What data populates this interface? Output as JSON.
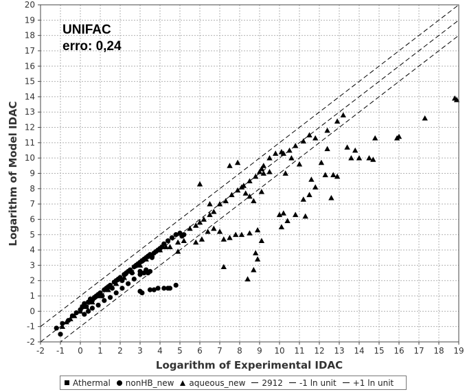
{
  "chart_data": {
    "type": "scatter",
    "title": "",
    "annotation": [
      "UNIFAC",
      "erro: 0,24"
    ],
    "xlabel": "Logarithm of Experimental IDAC",
    "ylabel": "Logarithm of Model IDAC",
    "xlim": [
      -2,
      19
    ],
    "ylim": [
      -2,
      20
    ],
    "xticks": [
      -2,
      -1,
      0,
      1,
      2,
      3,
      4,
      5,
      6,
      7,
      8,
      9,
      10,
      11,
      12,
      13,
      14,
      15,
      16,
      17,
      18,
      19
    ],
    "yticks": [
      -2,
      -1,
      0,
      1,
      2,
      3,
      4,
      5,
      6,
      7,
      8,
      9,
      10,
      11,
      12,
      13,
      14,
      15,
      16,
      17,
      18,
      19,
      20
    ],
    "grid": true,
    "legend_position": "bottom",
    "legend": [
      "Athermal",
      "nonHB_new",
      "aqueous_new",
      "2912",
      "-1 ln unit",
      "+1 ln unit"
    ],
    "series": [
      {
        "name": "nonHB_new",
        "marker": "circle",
        "points": [
          [
            -1.0,
            -1.5
          ],
          [
            -1.2,
            -1.1
          ],
          [
            -0.9,
            -0.8
          ],
          [
            -0.6,
            -0.6
          ],
          [
            -0.4,
            -0.3
          ],
          [
            -0.2,
            -0.1
          ],
          [
            0.0,
            0.1
          ],
          [
            0.1,
            0.3
          ],
          [
            0.2,
            0.5
          ],
          [
            0.3,
            0.3
          ],
          [
            0.4,
            0.6
          ],
          [
            0.5,
            0.8
          ],
          [
            0.6,
            0.7
          ],
          [
            0.7,
            0.9
          ],
          [
            0.8,
            1.0
          ],
          [
            0.9,
            1.1
          ],
          [
            1.0,
            1.2
          ],
          [
            1.1,
            1.0
          ],
          [
            1.2,
            1.4
          ],
          [
            1.3,
            1.5
          ],
          [
            1.4,
            1.6
          ],
          [
            1.5,
            1.7
          ],
          [
            1.6,
            1.5
          ],
          [
            1.7,
            1.9
          ],
          [
            1.8,
            2.0
          ],
          [
            1.9,
            2.1
          ],
          [
            2.0,
            2.2
          ],
          [
            2.1,
            2.0
          ],
          [
            2.2,
            2.4
          ],
          [
            2.3,
            2.5
          ],
          [
            2.4,
            2.6
          ],
          [
            2.5,
            2.7
          ],
          [
            2.6,
            2.5
          ],
          [
            2.7,
            2.9
          ],
          [
            2.8,
            3.0
          ],
          [
            2.9,
            3.1
          ],
          [
            3.0,
            3.2
          ],
          [
            3.1,
            3.3
          ],
          [
            3.2,
            3.4
          ],
          [
            3.3,
            3.5
          ],
          [
            3.4,
            3.6
          ],
          [
            3.5,
            3.7
          ],
          [
            3.6,
            3.5
          ],
          [
            3.7,
            3.8
          ],
          [
            3.8,
            3.9
          ],
          [
            3.9,
            4.0
          ],
          [
            4.0,
            4.1
          ],
          [
            4.1,
            4.2
          ],
          [
            4.2,
            4.4
          ],
          [
            4.4,
            4.6
          ],
          [
            4.6,
            4.8
          ],
          [
            4.8,
            5.0
          ],
          [
            5.0,
            5.1
          ],
          [
            5.1,
            4.9
          ],
          [
            5.2,
            5.0
          ],
          [
            0.2,
            -0.2
          ],
          [
            0.4,
            0.0
          ],
          [
            0.6,
            0.2
          ],
          [
            0.9,
            0.4
          ],
          [
            1.2,
            0.7
          ],
          [
            1.5,
            0.9
          ],
          [
            1.8,
            1.2
          ],
          [
            2.1,
            1.5
          ],
          [
            2.4,
            1.8
          ],
          [
            2.7,
            2.1
          ],
          [
            3.0,
            2.4
          ],
          [
            3.3,
            2.7
          ],
          [
            3.0,
            2.6
          ],
          [
            3.2,
            2.5
          ],
          [
            3.4,
            2.5
          ],
          [
            3.5,
            2.6
          ],
          [
            3.0,
            1.3
          ],
          [
            3.1,
            1.2
          ],
          [
            3.5,
            1.4
          ],
          [
            3.7,
            1.4
          ],
          [
            3.9,
            1.5
          ],
          [
            4.2,
            1.5
          ],
          [
            4.4,
            1.5
          ],
          [
            4.5,
            1.5
          ],
          [
            4.8,
            1.7
          ]
        ]
      },
      {
        "name": "aqueous_new",
        "marker": "triangle",
        "points": [
          [
            -0.9,
            -1.0
          ],
          [
            -0.7,
            -0.7
          ],
          [
            -0.5,
            -0.5
          ],
          [
            -0.3,
            -0.3
          ],
          [
            0.0,
            0.0
          ],
          [
            0.3,
            0.3
          ],
          [
            0.6,
            0.6
          ],
          [
            1.0,
            1.0
          ],
          [
            1.4,
            1.4
          ],
          [
            1.8,
            1.8
          ],
          [
            2.2,
            2.2
          ],
          [
            2.6,
            2.6
          ],
          [
            3.0,
            3.0
          ],
          [
            3.3,
            3.4
          ],
          [
            3.6,
            3.7
          ],
          [
            4.0,
            4.0
          ],
          [
            4.3,
            4.2
          ],
          [
            4.5,
            4.2
          ],
          [
            4.9,
            4.5
          ],
          [
            5.5,
            5.4
          ],
          [
            5.8,
            5.6
          ],
          [
            6.0,
            5.8
          ],
          [
            6.2,
            6.0
          ],
          [
            6.5,
            6.3
          ],
          [
            6.7,
            6.5
          ],
          [
            7.0,
            7.0
          ],
          [
            7.3,
            7.2
          ],
          [
            7.6,
            7.6
          ],
          [
            7.9,
            7.9
          ],
          [
            8.2,
            8.2
          ],
          [
            8.5,
            8.5
          ],
          [
            8.8,
            8.8
          ],
          [
            9.0,
            9.1
          ],
          [
            9.2,
            9.5
          ],
          [
            9.5,
            10.0
          ],
          [
            9.8,
            10.3
          ],
          [
            10.2,
            10.3
          ],
          [
            10.5,
            10.5
          ],
          [
            10.8,
            10.8
          ],
          [
            11.2,
            11.1
          ],
          [
            11.5,
            11.5
          ],
          [
            11.8,
            11.3
          ],
          [
            12.4,
            11.8
          ],
          [
            12.9,
            12.4
          ],
          [
            13.2,
            12.8
          ],
          [
            4.9,
            3.9
          ],
          [
            5.2,
            4.6
          ],
          [
            5.8,
            4.5
          ],
          [
            6.1,
            4.7
          ],
          [
            6.4,
            5.2
          ],
          [
            6.7,
            5.4
          ],
          [
            7.0,
            5.2
          ],
          [
            7.2,
            4.7
          ],
          [
            7.5,
            4.8
          ],
          [
            7.8,
            5.0
          ],
          [
            8.1,
            5.0
          ],
          [
            8.5,
            5.1
          ],
          [
            8.9,
            5.3
          ],
          [
            9.1,
            4.6
          ],
          [
            8.8,
            3.8
          ],
          [
            8.7,
            2.7
          ],
          [
            8.4,
            2.1
          ],
          [
            7.2,
            2.9
          ],
          [
            8.9,
            3.4
          ],
          [
            6.0,
            8.3
          ],
          [
            6.5,
            7.0
          ],
          [
            7.5,
            9.5
          ],
          [
            7.9,
            9.7
          ],
          [
            8.1,
            8.1
          ],
          [
            8.3,
            7.7
          ],
          [
            8.5,
            7.5
          ],
          [
            8.7,
            7.2
          ],
          [
            9.1,
            9.3
          ],
          [
            9.2,
            9.0
          ],
          [
            9.5,
            9.1
          ],
          [
            9.1,
            7.8
          ],
          [
            10.1,
            10.4
          ],
          [
            10.6,
            10.0
          ],
          [
            11.0,
            9.6
          ],
          [
            10.3,
            9.0
          ],
          [
            10.0,
            6.3
          ],
          [
            10.2,
            6.4
          ],
          [
            10.4,
            5.9
          ],
          [
            10.1,
            5.5
          ],
          [
            11.2,
            7.3
          ],
          [
            11.5,
            7.6
          ],
          [
            11.8,
            8.1
          ],
          [
            12.1,
            9.7
          ],
          [
            12.4,
            10.6
          ],
          [
            12.9,
            8.8
          ],
          [
            12.7,
            8.9
          ],
          [
            12.6,
            7.4
          ],
          [
            13.4,
            10.7
          ],
          [
            13.8,
            10.5
          ],
          [
            13.6,
            10.0
          ],
          [
            14.0,
            10.0
          ],
          [
            14.5,
            10.0
          ],
          [
            14.7,
            9.9
          ],
          [
            14.8,
            11.3
          ],
          [
            15.9,
            11.3
          ],
          [
            16.0,
            11.4
          ],
          [
            17.3,
            12.6
          ],
          [
            18.9,
            13.8
          ],
          [
            18.8,
            13.9
          ],
          [
            11.6,
            8.6
          ],
          [
            11.3,
            6.2
          ],
          [
            12.3,
            8.9
          ],
          [
            10.8,
            6.3
          ]
        ]
      }
    ],
    "reference_lines": [
      {
        "name": "2912",
        "from": [
          -2,
          -2
        ],
        "to": [
          19,
          19
        ]
      },
      {
        "name": "-1 ln unit",
        "from": [
          -2,
          -3
        ],
        "to": [
          19,
          18
        ]
      },
      {
        "name": "+1 ln unit",
        "from": [
          -2,
          -1
        ],
        "to": [
          19,
          20
        ]
      }
    ]
  }
}
